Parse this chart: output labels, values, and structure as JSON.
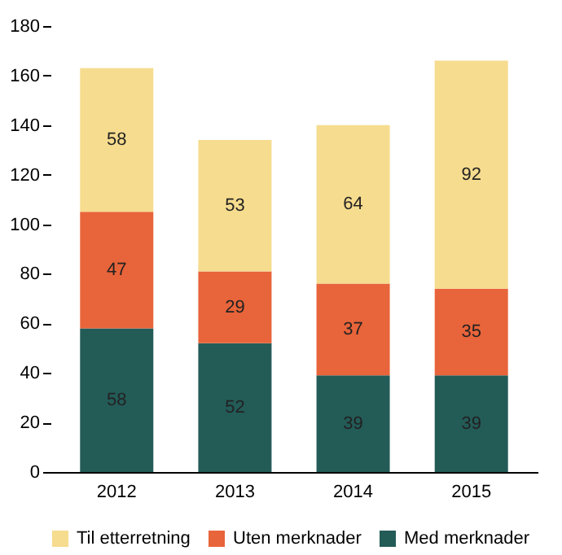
{
  "chart_data": {
    "type": "bar",
    "stacked": true,
    "data_labels": true,
    "legend": "bottom",
    "grid": false,
    "categories": [
      "2012",
      "2013",
      "2014",
      "2015"
    ],
    "ylim": [
      0,
      180
    ],
    "yticks": [
      0,
      20,
      40,
      60,
      80,
      100,
      120,
      140,
      160,
      180
    ],
    "series": [
      {
        "name": "Med merknader",
        "color": "#235b57",
        "values": [
          58,
          52,
          39,
          39
        ]
      },
      {
        "name": "Uten merknader",
        "color": "#e8643a",
        "values": [
          47,
          29,
          37,
          35
        ]
      },
      {
        "name": "Til etterretning",
        "color": "#f6dc8e",
        "values": [
          58,
          53,
          64,
          92
        ]
      }
    ]
  }
}
